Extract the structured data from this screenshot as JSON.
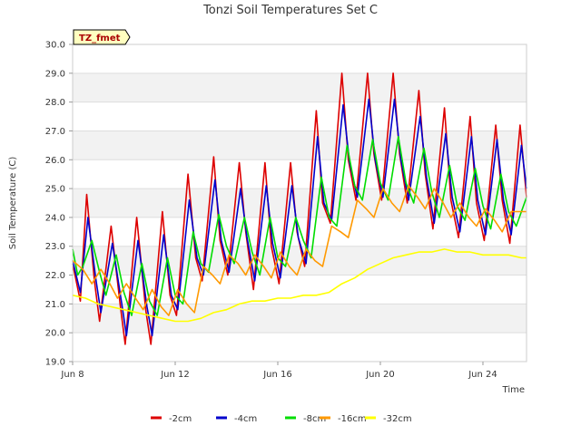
{
  "chart_data": {
    "type": "line",
    "title": "Tonzi Soil Temperatures Set C",
    "xlabel": "Time",
    "ylabel": "Soil Temperature (C)",
    "site_badge": "TZ_fmet",
    "x_unit": "days since Jun 8",
    "xlim": [
      0,
      17.7
    ],
    "ylim": [
      19.0,
      30.0
    ],
    "x_ticks": [
      {
        "x": 0,
        "label": "Jun 8"
      },
      {
        "x": 4,
        "label": "Jun 12"
      },
      {
        "x": 8,
        "label": "Jun 16"
      },
      {
        "x": 12,
        "label": "Jun 20"
      },
      {
        "x": 16,
        "label": "Jun 24"
      }
    ],
    "y_ticks": [
      19.0,
      20.0,
      21.0,
      22.0,
      23.0,
      24.0,
      25.0,
      26.0,
      27.0,
      28.0,
      29.0,
      30.0
    ],
    "grid": true,
    "legend_position": "bottom",
    "series": [
      {
        "name": "-2cm",
        "color": "#dd0000",
        "x": [
          0.0,
          0.3,
          0.55,
          0.85,
          1.05,
          1.5,
          1.85,
          2.05,
          2.5,
          2.85,
          3.05,
          3.5,
          3.8,
          4.05,
          4.5,
          4.8,
          5.05,
          5.5,
          5.75,
          6.05,
          6.5,
          6.75,
          7.05,
          7.5,
          7.75,
          8.05,
          8.5,
          8.75,
          9.05,
          9.5,
          9.75,
          10.05,
          10.5,
          10.75,
          11.05,
          11.5,
          11.75,
          12.05,
          12.5,
          12.75,
          13.05,
          13.5,
          13.75,
          14.05,
          14.5,
          14.75,
          15.05,
          15.5,
          15.75,
          16.05,
          16.5,
          16.75,
          17.05,
          17.45,
          17.7
        ],
        "y": [
          22.4,
          21.1,
          24.8,
          21.8,
          20.4,
          23.7,
          21.0,
          19.6,
          24.0,
          20.8,
          19.6,
          24.2,
          21.3,
          20.6,
          25.5,
          22.6,
          21.8,
          26.1,
          23.2,
          22.0,
          25.9,
          23.5,
          21.5,
          25.9,
          23.0,
          21.7,
          25.9,
          23.5,
          22.3,
          27.7,
          24.5,
          23.8,
          29.0,
          26.0,
          24.6,
          29.0,
          26.2,
          24.6,
          29.0,
          26.2,
          24.5,
          28.4,
          25.5,
          23.6,
          27.8,
          24.6,
          23.3,
          27.5,
          24.5,
          23.2,
          27.2,
          24.6,
          23.1,
          27.2,
          24.7
        ]
      },
      {
        "name": "-4cm",
        "color": "#0000cc",
        "x": [
          0.0,
          0.3,
          0.6,
          0.9,
          1.1,
          1.55,
          1.9,
          2.1,
          2.55,
          2.9,
          3.1,
          3.55,
          3.85,
          4.1,
          4.55,
          4.85,
          5.1,
          5.55,
          5.8,
          6.1,
          6.55,
          6.8,
          7.1,
          7.55,
          7.8,
          8.1,
          8.55,
          8.8,
          9.1,
          9.55,
          9.8,
          10.1,
          10.55,
          10.8,
          11.1,
          11.55,
          11.8,
          12.1,
          12.55,
          12.8,
          13.1,
          13.55,
          13.8,
          14.1,
          14.55,
          14.8,
          15.1,
          15.55,
          15.8,
          16.1,
          16.55,
          16.8,
          17.1,
          17.5,
          17.7
        ],
        "y": [
          22.5,
          21.4,
          24.0,
          21.9,
          20.7,
          23.1,
          21.1,
          19.9,
          23.2,
          20.9,
          19.9,
          23.4,
          21.3,
          20.8,
          24.6,
          22.6,
          22.0,
          25.3,
          23.2,
          22.1,
          25.0,
          23.3,
          21.8,
          25.1,
          23.1,
          21.9,
          25.1,
          23.3,
          22.4,
          26.8,
          24.5,
          23.9,
          27.9,
          25.9,
          24.7,
          28.1,
          26.0,
          24.7,
          28.1,
          26.0,
          24.6,
          27.5,
          25.4,
          23.8,
          26.9,
          24.7,
          23.5,
          26.8,
          24.6,
          23.4,
          26.7,
          24.6,
          23.4,
          26.5,
          25.0
        ]
      },
      {
        "name": "-8cm",
        "color": "#00dd00",
        "x": [
          0.0,
          0.2,
          0.4,
          0.75,
          1.05,
          1.3,
          1.7,
          2.0,
          2.3,
          2.7,
          3.0,
          3.3,
          3.7,
          4.0,
          4.3,
          4.7,
          5.0,
          5.3,
          5.7,
          6.0,
          6.3,
          6.7,
          7.0,
          7.3,
          7.7,
          8.0,
          8.3,
          8.7,
          9.0,
          9.3,
          9.7,
          10.0,
          10.3,
          10.7,
          11.0,
          11.3,
          11.7,
          12.0,
          12.3,
          12.7,
          13.0,
          13.3,
          13.7,
          14.0,
          14.3,
          14.7,
          15.0,
          15.3,
          15.7,
          16.0,
          16.3,
          16.7,
          17.0,
          17.3,
          17.7
        ],
        "y": [
          22.9,
          22.0,
          22.3,
          23.2,
          22.1,
          21.3,
          22.7,
          21.4,
          20.6,
          22.4,
          21.1,
          20.6,
          22.6,
          21.3,
          21.0,
          23.5,
          22.4,
          22.1,
          24.1,
          23.0,
          22.4,
          24.0,
          22.8,
          22.0,
          24.0,
          22.6,
          22.3,
          24.0,
          23.2,
          22.6,
          25.4,
          24.0,
          23.7,
          26.5,
          25.1,
          24.6,
          26.7,
          25.2,
          24.6,
          26.8,
          25.2,
          24.5,
          26.4,
          24.9,
          24.0,
          25.8,
          24.4,
          23.9,
          25.7,
          24.4,
          23.6,
          25.5,
          24.2,
          23.7,
          24.7
        ]
      },
      {
        "name": "-16cm",
        "color": "#ff9900",
        "x": [
          0.0,
          0.4,
          0.75,
          1.1,
          1.45,
          1.75,
          2.1,
          2.45,
          2.75,
          3.1,
          3.45,
          3.75,
          4.1,
          4.45,
          4.75,
          5.1,
          5.45,
          5.75,
          6.1,
          6.45,
          6.75,
          7.1,
          7.45,
          7.75,
          8.1,
          8.45,
          8.75,
          9.1,
          9.45,
          9.75,
          10.1,
          10.45,
          10.75,
          11.1,
          11.45,
          11.75,
          12.1,
          12.45,
          12.75,
          13.1,
          13.45,
          13.75,
          14.1,
          14.45,
          14.75,
          15.1,
          15.45,
          15.75,
          16.1,
          16.45,
          16.75,
          17.1,
          17.45,
          17.7
        ],
        "y": [
          22.5,
          22.2,
          21.7,
          22.2,
          21.7,
          21.2,
          21.7,
          21.2,
          20.8,
          21.5,
          20.9,
          20.6,
          21.5,
          21.0,
          20.7,
          22.3,
          22.0,
          21.7,
          22.7,
          22.4,
          22.0,
          22.7,
          22.3,
          21.9,
          22.8,
          22.3,
          22.0,
          22.9,
          22.5,
          22.3,
          23.7,
          23.5,
          23.3,
          24.6,
          24.3,
          24.0,
          25.0,
          24.5,
          24.2,
          25.1,
          24.7,
          24.3,
          25.0,
          24.5,
          24.0,
          24.5,
          24.0,
          23.7,
          24.3,
          23.9,
          23.5,
          24.2,
          24.2,
          24.2
        ]
      },
      {
        "name": "-32cm",
        "color": "#ffff00",
        "x": [
          0.0,
          0.5,
          1.0,
          1.5,
          2.0,
          2.5,
          3.0,
          3.5,
          4.0,
          4.5,
          5.0,
          5.5,
          6.0,
          6.5,
          7.0,
          7.5,
          8.0,
          8.5,
          9.0,
          9.5,
          10.0,
          10.5,
          11.0,
          11.5,
          12.0,
          12.5,
          13.0,
          13.5,
          14.0,
          14.5,
          15.0,
          15.5,
          16.0,
          16.5,
          17.0,
          17.5,
          17.7
        ],
        "y": [
          21.3,
          21.2,
          21.0,
          20.9,
          20.8,
          20.7,
          20.6,
          20.5,
          20.4,
          20.4,
          20.5,
          20.7,
          20.8,
          21.0,
          21.1,
          21.1,
          21.2,
          21.2,
          21.3,
          21.3,
          21.4,
          21.7,
          21.9,
          22.2,
          22.4,
          22.6,
          22.7,
          22.8,
          22.8,
          22.9,
          22.8,
          22.8,
          22.7,
          22.7,
          22.7,
          22.6,
          22.6
        ]
      }
    ]
  }
}
